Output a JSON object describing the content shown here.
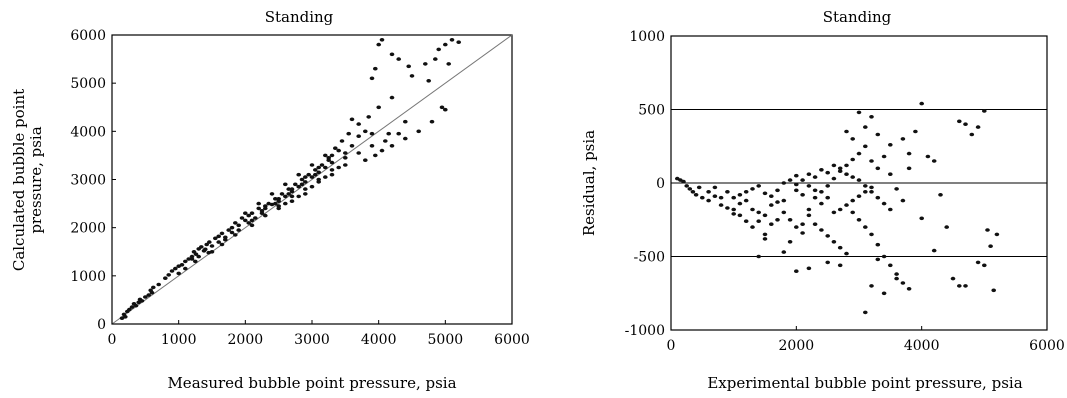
{
  "chart_data": [
    {
      "type": "scatter",
      "title": "Standing",
      "xlabel": "Measured bubble point pressure, psia",
      "ylabel_lines": [
        "Calculated bubble point",
        "pressure, psia"
      ],
      "xlim": [
        0,
        6000
      ],
      "ylim": [
        0,
        6000
      ],
      "xticks": [
        "0",
        "1000",
        "2000",
        "3000",
        "4000",
        "5000",
        "6000"
      ],
      "yticks": [
        "0",
        "1000",
        "2000",
        "3000",
        "4000",
        "5000",
        "6000"
      ],
      "reference_line": "y = x",
      "points": [
        [
          150,
          120
        ],
        [
          180,
          200
        ],
        [
          200,
          150
        ],
        [
          230,
          260
        ],
        [
          260,
          300
        ],
        [
          300,
          350
        ],
        [
          330,
          420
        ],
        [
          360,
          380
        ],
        [
          400,
          450
        ],
        [
          420,
          510
        ],
        [
          450,
          480
        ],
        [
          500,
          560
        ],
        [
          550,
          600
        ],
        [
          580,
          700
        ],
        [
          600,
          650
        ],
        [
          620,
          760
        ],
        [
          700,
          820
        ],
        [
          800,
          950
        ],
        [
          850,
          1020
        ],
        [
          900,
          1100
        ],
        [
          950,
          1150
        ],
        [
          1000,
          1200
        ],
        [
          1050,
          1230
        ],
        [
          1100,
          1300
        ],
        [
          1150,
          1350
        ],
        [
          1200,
          1400
        ],
        [
          1230,
          1500
        ],
        [
          1260,
          1450
        ],
        [
          1300,
          1560
        ],
        [
          1340,
          1600
        ],
        [
          1380,
          1520
        ],
        [
          1420,
          1650
        ],
        [
          1460,
          1700
        ],
        [
          1500,
          1620
        ],
        [
          1550,
          1780
        ],
        [
          1600,
          1820
        ],
        [
          1650,
          1880
        ],
        [
          1700,
          1750
        ],
        [
          1750,
          1950
        ],
        [
          1800,
          2000
        ],
        [
          1850,
          2100
        ],
        [
          1900,
          2050
        ],
        [
          1950,
          2200
        ],
        [
          2000,
          2150
        ],
        [
          2050,
          2250
        ],
        [
          2100,
          2300
        ],
        [
          2150,
          2200
        ],
        [
          2200,
          2400
        ],
        [
          2250,
          2350
        ],
        [
          2300,
          2450
        ],
        [
          2350,
          2500
        ],
        [
          2400,
          2480
        ],
        [
          2450,
          2600
        ],
        [
          2500,
          2550
        ],
        [
          2550,
          2700
        ],
        [
          2600,
          2650
        ],
        [
          2650,
          2800
        ],
        [
          2700,
          2750
        ],
        [
          2750,
          2900
        ],
        [
          2800,
          2850
        ],
        [
          2850,
          3000
        ],
        [
          2900,
          2950
        ],
        [
          2950,
          3100
        ],
        [
          3000,
          3050
        ],
        [
          3050,
          3200
        ],
        [
          3100,
          3150
        ],
        [
          3150,
          3300
        ],
        [
          3200,
          3250
        ],
        [
          3250,
          3400
        ],
        [
          3300,
          3500
        ],
        [
          3400,
          3600
        ],
        [
          3500,
          3450
        ],
        [
          3600,
          3700
        ],
        [
          3700,
          3900
        ],
        [
          3800,
          4000
        ],
        [
          3900,
          3950
        ],
        [
          1200,
          1350
        ],
        [
          1400,
          1550
        ],
        [
          1600,
          1700
        ],
        [
          1800,
          1900
        ],
        [
          2000,
          2300
        ],
        [
          2200,
          2500
        ],
        [
          2400,
          2700
        ],
        [
          2600,
          2900
        ],
        [
          2800,
          3100
        ],
        [
          3000,
          3300
        ],
        [
          3200,
          3500
        ],
        [
          2500,
          2400
        ],
        [
          2700,
          2650
        ],
        [
          2900,
          2800
        ],
        [
          3100,
          3000
        ],
        [
          3300,
          3200
        ],
        [
          2100,
          2050
        ],
        [
          2300,
          2250
        ],
        [
          2500,
          2450
        ],
        [
          2700,
          2550
        ],
        [
          2900,
          2700
        ],
        [
          3100,
          2950
        ],
        [
          3300,
          3100
        ],
        [
          3500,
          3300
        ],
        [
          3700,
          3550
        ],
        [
          3900,
          3700
        ],
        [
          4100,
          3800
        ],
        [
          4300,
          3950
        ],
        [
          3800,
          3400
        ],
        [
          3950,
          3500
        ],
        [
          4050,
          3600
        ],
        [
          4200,
          3700
        ],
        [
          4400,
          3850
        ],
        [
          4600,
          4000
        ],
        [
          4800,
          4200
        ],
        [
          5000,
          4450
        ],
        [
          4950,
          4500
        ],
        [
          3900,
          5100
        ],
        [
          3950,
          5300
        ],
        [
          4000,
          5800
        ],
        [
          4050,
          5900
        ],
        [
          4200,
          5600
        ],
        [
          4300,
          5500
        ],
        [
          4450,
          5350
        ],
        [
          4500,
          5150
        ],
        [
          4700,
          5400
        ],
        [
          4750,
          5050
        ],
        [
          4850,
          5500
        ],
        [
          4900,
          5700
        ],
        [
          5000,
          5800
        ],
        [
          5050,
          5400
        ],
        [
          5100,
          5900
        ],
        [
          5200,
          5850
        ],
        [
          3600,
          4250
        ],
        [
          3700,
          4150
        ],
        [
          3850,
          4300
        ],
        [
          4000,
          4500
        ],
        [
          4200,
          4700
        ],
        [
          4400,
          4200
        ],
        [
          4150,
          3950
        ],
        [
          1000,
          1050
        ],
        [
          1100,
          1150
        ],
        [
          1300,
          1400
        ],
        [
          1500,
          1500
        ],
        [
          1700,
          1800
        ],
        [
          1900,
          1950
        ],
        [
          2100,
          2150
        ],
        [
          2300,
          2400
        ],
        [
          2500,
          2600
        ],
        [
          2700,
          2800
        ],
        [
          2900,
          3050
        ],
        [
          3100,
          3250
        ],
        [
          3300,
          3350
        ],
        [
          3500,
          3550
        ],
        [
          3450,
          3800
        ],
        [
          3550,
          3950
        ],
        [
          3350,
          3650
        ],
        [
          3250,
          3450
        ],
        [
          1250,
          1300
        ],
        [
          1450,
          1480
        ],
        [
          1650,
          1650
        ],
        [
          1850,
          1850
        ],
        [
          2050,
          2100
        ],
        [
          2250,
          2300
        ],
        [
          2450,
          2500
        ],
        [
          2650,
          2700
        ],
        [
          2850,
          2900
        ],
        [
          3050,
          3100
        ],
        [
          2600,
          2500
        ],
        [
          2800,
          2650
        ],
        [
          3000,
          2850
        ],
        [
          3200,
          3050
        ],
        [
          3400,
          3250
        ]
      ]
    },
    {
      "type": "scatter",
      "title": "Standing",
      "xlabel": "Experimental bubble point pressure, psia",
      "ylabel": "Residual, psia",
      "xlim": [
        0,
        6000
      ],
      "ylim": [
        -1000,
        1000
      ],
      "xticks": [
        "0",
        "2000",
        "4000",
        "6000"
      ],
      "yticks": [
        "1000",
        "500",
        "0",
        "-500",
        "-1000"
      ],
      "hlines": [
        500,
        0,
        -500
      ],
      "points": [
        [
          100,
          30
        ],
        [
          150,
          20
        ],
        [
          200,
          10
        ],
        [
          250,
          -20
        ],
        [
          300,
          -40
        ],
        [
          350,
          -60
        ],
        [
          400,
          -80
        ],
        [
          450,
          -30
        ],
        [
          500,
          -100
        ],
        [
          600,
          -120
        ],
        [
          700,
          -90
        ],
        [
          800,
          -150
        ],
        [
          900,
          -60
        ],
        [
          1000,
          -180
        ],
        [
          1100,
          -220
        ],
        [
          1200,
          -260
        ],
        [
          1300,
          -300
        ],
        [
          1400,
          -200
        ],
        [
          1500,
          -350
        ],
        [
          1600,
          -150
        ],
        [
          1700,
          -250
        ],
        [
          1800,
          -120
        ],
        [
          1900,
          -400
        ],
        [
          2000,
          -50
        ],
        [
          2100,
          -280
        ],
        [
          2200,
          -180
        ],
        [
          2300,
          -100
        ],
        [
          2400,
          -60
        ],
        [
          2500,
          -20
        ],
        [
          2600,
          30
        ],
        [
          2700,
          80
        ],
        [
          2800,
          120
        ],
        [
          2900,
          160
        ],
        [
          3000,
          200
        ],
        [
          3100,
          250
        ],
        [
          3200,
          150
        ],
        [
          3300,
          100
        ],
        [
          3400,
          180
        ],
        [
          3500,
          60
        ],
        [
          3600,
          -40
        ],
        [
          3700,
          300
        ],
        [
          3800,
          200
        ],
        [
          3900,
          350
        ],
        [
          4000,
          540
        ],
        [
          4100,
          180
        ],
        [
          4200,
          150
        ],
        [
          4300,
          -80
        ],
        [
          4400,
          -300
        ],
        [
          4500,
          -650
        ],
        [
          4600,
          420
        ],
        [
          4700,
          400
        ],
        [
          4800,
          330
        ],
        [
          4900,
          380
        ],
        [
          5000,
          490
        ],
        [
          5050,
          -320
        ],
        [
          5100,
          -430
        ],
        [
          5150,
          -730
        ],
        [
          5200,
          -350
        ],
        [
          1000,
          -100
        ],
        [
          1100,
          -140
        ],
        [
          1200,
          -120
        ],
        [
          1300,
          -180
        ],
        [
          1400,
          -260
        ],
        [
          1500,
          -220
        ],
        [
          1600,
          -280
        ],
        [
          1700,
          -130
        ],
        [
          1800,
          -200
        ],
        [
          1900,
          -250
        ],
        [
          2000,
          -300
        ],
        [
          2100,
          -340
        ],
        [
          2200,
          -220
        ],
        [
          2300,
          -280
        ],
        [
          2400,
          -320
        ],
        [
          2500,
          -360
        ],
        [
          2600,
          -400
        ],
        [
          2700,
          -440
        ],
        [
          2800,
          -480
        ],
        [
          2900,
          -200
        ],
        [
          3000,
          -250
        ],
        [
          3100,
          -300
        ],
        [
          3200,
          -350
        ],
        [
          3300,
          -420
        ],
        [
          3400,
          -500
        ],
        [
          3500,
          -560
        ],
        [
          3600,
          -620
        ],
        [
          3700,
          -680
        ],
        [
          3800,
          -720
        ],
        [
          2000,
          50
        ],
        [
          2100,
          20
        ],
        [
          2200,
          60
        ],
        [
          2300,
          40
        ],
        [
          2400,
          90
        ],
        [
          2500,
          70
        ],
        [
          2600,
          120
        ],
        [
          2700,
          100
        ],
        [
          2800,
          60
        ],
        [
          2900,
          40
        ],
        [
          3000,
          20
        ],
        [
          3100,
          -20
        ],
        [
          3200,
          -60
        ],
        [
          3300,
          -100
        ],
        [
          3400,
          -140
        ],
        [
          3500,
          -180
        ],
        [
          2600,
          -200
        ],
        [
          2700,
          -180
        ],
        [
          2800,
          -150
        ],
        [
          2900,
          -120
        ],
        [
          3000,
          -90
        ],
        [
          3100,
          -60
        ],
        [
          3200,
          -30
        ],
        [
          2500,
          -100
        ],
        [
          2400,
          -140
        ],
        [
          2300,
          -50
        ],
        [
          2200,
          -20
        ],
        [
          2100,
          -80
        ],
        [
          3100,
          -880
        ],
        [
          3200,
          -700
        ],
        [
          3300,
          -520
        ],
        [
          3400,
          -750
        ],
        [
          3600,
          -650
        ],
        [
          2000,
          -600
        ],
        [
          2200,
          -580
        ],
        [
          2500,
          -540
        ],
        [
          2700,
          -560
        ],
        [
          1800,
          -470
        ],
        [
          1500,
          -380
        ],
        [
          1400,
          -500
        ],
        [
          3000,
          480
        ],
        [
          3200,
          450
        ],
        [
          2800,
          350
        ],
        [
          3300,
          330
        ],
        [
          2900,
          300
        ],
        [
          3100,
          380
        ],
        [
          3500,
          260
        ],
        [
          3800,
          100
        ],
        [
          3700,
          -120
        ],
        [
          4000,
          -240
        ],
        [
          4200,
          -460
        ],
        [
          4600,
          -700
        ],
        [
          4700,
          -700
        ],
        [
          4900,
          -540
        ],
        [
          5000,
          -560
        ],
        [
          600,
          -60
        ],
        [
          700,
          -30
        ],
        [
          800,
          -100
        ],
        [
          900,
          -170
        ],
        [
          1000,
          -210
        ],
        [
          1100,
          -80
        ],
        [
          1200,
          -60
        ],
        [
          1300,
          -40
        ],
        [
          1400,
          -20
        ],
        [
          1500,
          -70
        ],
        [
          1600,
          -90
        ],
        [
          1700,
          -50
        ],
        [
          1800,
          0
        ],
        [
          1900,
          20
        ],
        [
          2000,
          -10
        ]
      ]
    }
  ]
}
